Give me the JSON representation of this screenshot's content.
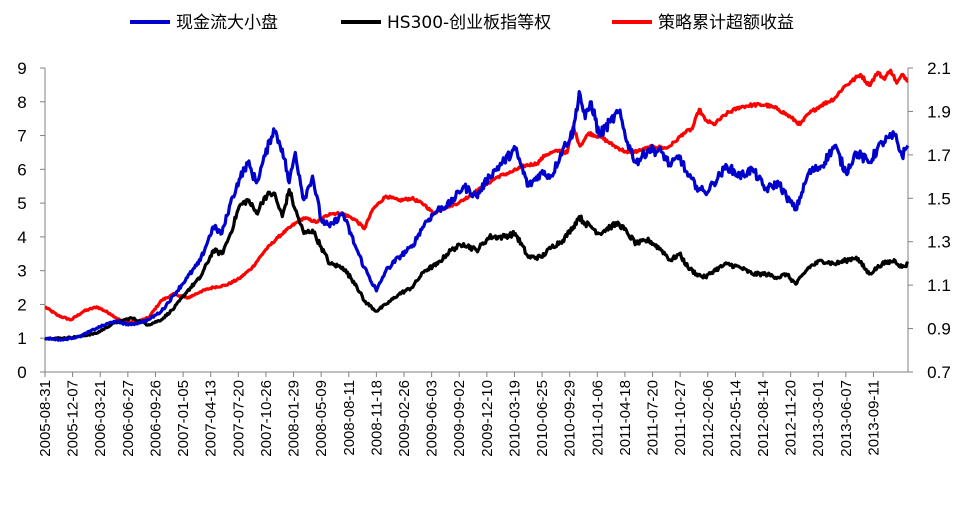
{
  "chart_data": {
    "type": "line",
    "title": "",
    "legend": {
      "position": "top"
    },
    "left_axis": {
      "ylim": [
        0,
        9
      ],
      "ticks": [
        "0",
        "1",
        "2",
        "3",
        "4",
        "5",
        "6",
        "7",
        "8",
        "9"
      ]
    },
    "right_axis": {
      "ylim": [
        0.7,
        2.1
      ],
      "ticks": [
        "0.7",
        "0.9",
        "1.1",
        "1.3",
        "1.5",
        "1.7",
        "1.9",
        "2.1"
      ]
    },
    "xlim": [
      0,
      100
    ],
    "x_ticks": [
      {
        "x": 0,
        "label": "2005-08-31"
      },
      {
        "x": 3.2,
        "label": "2005-12-07"
      },
      {
        "x": 6.4,
        "label": "2006-03-21"
      },
      {
        "x": 9.6,
        "label": "2006-06-27"
      },
      {
        "x": 12.8,
        "label": "2006-09-26"
      },
      {
        "x": 16.0,
        "label": "2007-01-05"
      },
      {
        "x": 19.2,
        "label": "2007-04-13"
      },
      {
        "x": 22.4,
        "label": "2007-07-20"
      },
      {
        "x": 25.6,
        "label": "2007-10-26"
      },
      {
        "x": 28.8,
        "label": "2008-01-29"
      },
      {
        "x": 32.0,
        "label": "2008-05-09"
      },
      {
        "x": 35.2,
        "label": "2008-08-11"
      },
      {
        "x": 38.4,
        "label": "2008-11-18"
      },
      {
        "x": 41.6,
        "label": "2009-02-26"
      },
      {
        "x": 44.8,
        "label": "2009-06-03"
      },
      {
        "x": 48.0,
        "label": "2009-09-02"
      },
      {
        "x": 51.2,
        "label": "2009-12-10"
      },
      {
        "x": 54.4,
        "label": "2010-03-19"
      },
      {
        "x": 57.6,
        "label": "2010-06-25"
      },
      {
        "x": 60.8,
        "label": "2010-09-29"
      },
      {
        "x": 64.0,
        "label": "2011-01-06"
      },
      {
        "x": 67.2,
        "label": "2011-04-18"
      },
      {
        "x": 70.4,
        "label": "2011-07-20"
      },
      {
        "x": 73.6,
        "label": "2011-10-27"
      },
      {
        "x": 76.8,
        "label": "2012-02-06"
      },
      {
        "x": 80.0,
        "label": "2012-05-14"
      },
      {
        "x": 83.2,
        "label": "2012-08-14"
      },
      {
        "x": 86.4,
        "label": "2012-11-20"
      },
      {
        "x": 89.6,
        "label": "2013-03-01"
      },
      {
        "x": 92.8,
        "label": "2013-06-07"
      },
      {
        "x": 96.0,
        "label": "2013-09-11"
      }
    ],
    "series": [
      {
        "name": "现金流大小盘",
        "axis": "left",
        "color": "#0000CC",
        "x": [
          0,
          2,
          4,
          6,
          8,
          10,
          12,
          13.5,
          15,
          16.5,
          18,
          19.5,
          20.5,
          21.5,
          22.5,
          23.5,
          24.5,
          25.5,
          26.5,
          27.5,
          28.3,
          29,
          30,
          31,
          32,
          33,
          34.5,
          36,
          37,
          38.4,
          39.5,
          41,
          42.5,
          44,
          45.5,
          47,
          48.5,
          50,
          51.5,
          53,
          54.5,
          56,
          57.5,
          58.7,
          60,
          61.2,
          61.9,
          62.6,
          63.3,
          64.2,
          65.5,
          66.5,
          67.5,
          68.5,
          70,
          71.5,
          72.5,
          73.5,
          74.5,
          75.5,
          76.5,
          77.5,
          79,
          80.5,
          82,
          83.5,
          85,
          85.9,
          87,
          88.5,
          90,
          91.5,
          92.8,
          94,
          95.5,
          97,
          98.5,
          99.3,
          100
        ],
        "y": [
          1.0,
          0.95,
          1.05,
          1.3,
          1.5,
          1.4,
          1.55,
          1.8,
          2.3,
          2.8,
          3.3,
          4.3,
          4.1,
          5.0,
          5.7,
          6.2,
          5.6,
          6.4,
          7.2,
          6.6,
          5.6,
          6.5,
          5.1,
          5.8,
          4.5,
          4.3,
          4.7,
          3.7,
          3.1,
          2.4,
          3.0,
          3.4,
          3.7,
          4.4,
          4.8,
          5.0,
          5.5,
          5.2,
          5.8,
          6.2,
          6.6,
          5.5,
          5.9,
          5.8,
          6.6,
          7.1,
          8.3,
          7.5,
          8.0,
          7.0,
          7.4,
          7.7,
          6.8,
          6.2,
          6.6,
          6.5,
          6.1,
          6.4,
          5.8,
          5.5,
          5.3,
          5.6,
          6.1,
          5.8,
          6.0,
          5.4,
          5.6,
          5.2,
          4.8,
          5.9,
          6.1,
          6.7,
          5.9,
          6.5,
          6.2,
          6.8,
          7.0,
          6.4,
          6.7
        ]
      },
      {
        "name": "HS300-创业板指等权",
        "axis": "left",
        "color": "#000000",
        "x": [
          0,
          2,
          4,
          6,
          8,
          10,
          12,
          13.5,
          15,
          16.5,
          18,
          19.5,
          20.5,
          21.5,
          22.5,
          23.5,
          24.5,
          25.5,
          26.5,
          27.5,
          28.3,
          29,
          30,
          31,
          32,
          33,
          34.5,
          36,
          37,
          38.4,
          39.5,
          41,
          42.5,
          44,
          45.5,
          47,
          48.5,
          50,
          51.5,
          53,
          54.5,
          56,
          57.5,
          58.7,
          60,
          61.2,
          61.9,
          62.6,
          63.3,
          64.2,
          65.5,
          66.5,
          67.5,
          68.5,
          70,
          71.5,
          72.5,
          73.5,
          74.5,
          75.5,
          76.5,
          77.5,
          79,
          80.5,
          82,
          83.5,
          85,
          85.9,
          87,
          88.5,
          90,
          91.5,
          92.8,
          94,
          95.5,
          97,
          98.5,
          99.3,
          100
        ],
        "y": [
          1.0,
          1.0,
          1.05,
          1.15,
          1.45,
          1.6,
          1.4,
          1.55,
          1.9,
          2.4,
          2.8,
          3.6,
          3.5,
          4.1,
          4.9,
          5.1,
          4.7,
          5.2,
          5.3,
          4.6,
          5.4,
          4.8,
          4.1,
          4.2,
          3.7,
          3.2,
          3.1,
          2.6,
          2.1,
          1.8,
          2.0,
          2.3,
          2.5,
          3.0,
          3.2,
          3.6,
          3.8,
          3.6,
          4.0,
          4.0,
          4.1,
          3.4,
          3.4,
          3.7,
          3.9,
          4.3,
          4.6,
          4.4,
          4.3,
          4.1,
          4.3,
          4.4,
          4.1,
          3.8,
          3.9,
          3.6,
          3.3,
          3.5,
          3.1,
          2.9,
          2.8,
          3.0,
          3.2,
          3.1,
          2.9,
          2.9,
          2.8,
          2.9,
          2.6,
          3.1,
          3.3,
          3.2,
          3.3,
          3.4,
          2.9,
          3.2,
          3.3,
          3.1,
          3.2
        ]
      },
      {
        "name": "策略累计超额收益",
        "axis": "right",
        "color": "#FF0000",
        "x": [
          0,
          1.5,
          3,
          4.5,
          6,
          7.5,
          9,
          10.5,
          12,
          13.5,
          15,
          16.5,
          18,
          19.5,
          21,
          22.5,
          24,
          25.5,
          27,
          28.5,
          30,
          31.5,
          33,
          34.5,
          36,
          37,
          38,
          39.5,
          41,
          42.5,
          44,
          45,
          46.5,
          48,
          49.5,
          51,
          52.5,
          54,
          55.5,
          57,
          58,
          59.5,
          60.5,
          61.2,
          62,
          63,
          64.5,
          66,
          67.5,
          69,
          70.5,
          72,
          73,
          74,
          75,
          75.8,
          76.5,
          77.5,
          79,
          80.5,
          82,
          83.5,
          85,
          86.5,
          87.5,
          88.5,
          90,
          91.5,
          92.5,
          93.5,
          94.5,
          95.5,
          96.5,
          97.2,
          98,
          98.7,
          99.4,
          100
        ],
        "y": [
          1.0,
          0.96,
          0.94,
          0.98,
          1.0,
          0.97,
          0.93,
          0.93,
          0.95,
          1.03,
          1.06,
          1.04,
          1.07,
          1.09,
          1.1,
          1.13,
          1.18,
          1.26,
          1.32,
          1.37,
          1.41,
          1.39,
          1.43,
          1.43,
          1.4,
          1.36,
          1.45,
          1.51,
          1.49,
          1.5,
          1.47,
          1.43,
          1.46,
          1.48,
          1.52,
          1.56,
          1.6,
          1.62,
          1.65,
          1.66,
          1.7,
          1.72,
          1.71,
          1.83,
          1.74,
          1.8,
          1.78,
          1.74,
          1.71,
          1.72,
          1.74,
          1.73,
          1.76,
          1.8,
          1.82,
          1.91,
          1.86,
          1.84,
          1.89,
          1.92,
          1.93,
          1.93,
          1.91,
          1.87,
          1.84,
          1.89,
          1.93,
          1.96,
          2.01,
          2.04,
          2.07,
          2.02,
          2.08,
          2.05,
          2.09,
          2.03,
          2.07,
          2.04
        ]
      }
    ]
  }
}
